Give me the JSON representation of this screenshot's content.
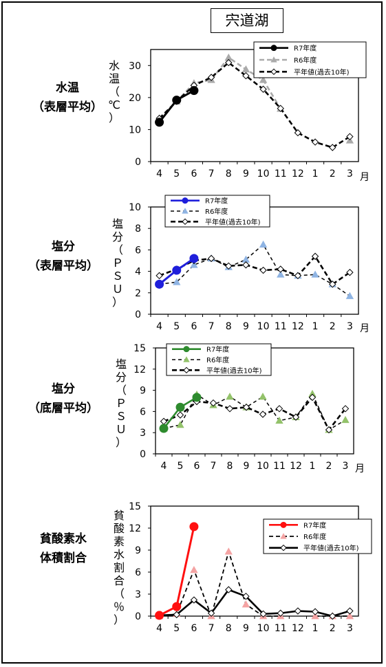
{
  "lake_title": "宍道湖",
  "panels": [
    {
      "label_lines": [
        "水温",
        "（表層平均）"
      ],
      "ylabel_chars": [
        "水",
        "温",
        "（",
        "℃",
        "）"
      ],
      "chart_data": {
        "type": "line",
        "categories": [
          "4",
          "5",
          "6",
          "7",
          "8",
          "9",
          "10",
          "11",
          "12",
          "1",
          "2",
          "3"
        ],
        "x_unit": "月",
        "ylim": [
          0,
          35
        ],
        "yticks": [
          0,
          10,
          20,
          30
        ],
        "legend_position": "top-right",
        "colors": {
          "r7": "#000000",
          "r6": "#aaaaaa",
          "avg": "#000000"
        },
        "series": [
          {
            "name": "R7年度",
            "values": [
              12.3,
              19.2,
              22.2,
              null,
              null,
              null,
              null,
              null,
              null,
              null,
              null,
              null
            ]
          },
          {
            "name": "R6年度",
            "values": [
              13.5,
              18.8,
              24.5,
              25.5,
              32.5,
              28.8,
              25.5,
              16.5,
              null,
              null,
              null,
              6.6
            ]
          },
          {
            "name": "平年値(過去10年)",
            "values": [
              13.5,
              18.8,
              23.8,
              26.3,
              30.9,
              26.8,
              22.6,
              16.6,
              9.0,
              6.1,
              4.4,
              7.8
            ]
          }
        ]
      }
    },
    {
      "label_lines": [
        "塩分",
        "（表層平均）"
      ],
      "ylabel_chars": [
        "塩",
        "分",
        "（",
        "Ｐ",
        "Ｓ",
        "Ｕ",
        "）"
      ],
      "chart_data": {
        "type": "line",
        "categories": [
          "4",
          "5",
          "6",
          "7",
          "8",
          "9",
          "10",
          "11",
          "12",
          "1",
          "2",
          "3"
        ],
        "x_unit": "月",
        "ylim": [
          0,
          10
        ],
        "yticks": [
          0,
          2,
          4,
          6,
          8,
          10
        ],
        "legend_position": "top-left",
        "colors": {
          "r7": "#1f1fdb",
          "r6": "#8fb4e3",
          "avg": "#000000"
        },
        "series": [
          {
            "name": "R7年度",
            "values": [
              2.8,
              4.1,
              5.2,
              null,
              null,
              null,
              null,
              null,
              null,
              null,
              null,
              null
            ]
          },
          {
            "name": "R6年度",
            "values": [
              2.8,
              3.0,
              4.6,
              5.2,
              4.4,
              5.1,
              6.5,
              3.7,
              3.6,
              3.7,
              2.8,
              1.7
            ]
          },
          {
            "name": "平年値(過去10年)",
            "values": [
              3.6,
              4.2,
              5.0,
              5.2,
              4.5,
              4.6,
              4.1,
              4.2,
              3.6,
              5.4,
              2.8,
              3.9
            ]
          }
        ]
      }
    },
    {
      "label_lines": [
        "塩分",
        "（底層平均）"
      ],
      "ylabel_chars": [
        "塩",
        "分",
        "（",
        "Ｐ",
        "Ｓ",
        "Ｕ",
        "）"
      ],
      "chart_data": {
        "type": "line",
        "categories": [
          "4",
          "5",
          "6",
          "7",
          "8",
          "9",
          "10",
          "11",
          "12",
          "1",
          "2",
          "3"
        ],
        "x_unit": "月",
        "ylim": [
          0,
          15
        ],
        "yticks": [
          0,
          3,
          6,
          9,
          12,
          15
        ],
        "legend_position": "top-left",
        "colors": {
          "r7": "#2e8b2e",
          "r6": "#93c26a",
          "avg": "#000000"
        },
        "series": [
          {
            "name": "R7年度",
            "values": [
              3.6,
              6.6,
              8.0,
              null,
              null,
              null,
              null,
              null,
              null,
              null,
              null,
              null
            ]
          },
          {
            "name": "R6年度",
            "values": [
              3.6,
              4.1,
              8.4,
              6.9,
              8.1,
              6.6,
              8.1,
              4.7,
              5.2,
              8.5,
              3.4,
              4.8
            ]
          },
          {
            "name": "平年値(過去10年)",
            "values": [
              4.6,
              5.5,
              7.4,
              7.2,
              6.4,
              6.6,
              5.6,
              6.4,
              5.2,
              8.0,
              3.4,
              6.4
            ]
          }
        ]
      }
    },
    {
      "label_lines": [
        "貧酸素水",
        "体積割合"
      ],
      "ylabel_chars": [
        "貧",
        "酸",
        "素",
        "水",
        "割",
        "合",
        "（",
        "％",
        "）"
      ],
      "chart_data": {
        "type": "line",
        "categories": [
          "4",
          "5",
          "6",
          "7",
          "8",
          "9",
          "10",
          "11",
          "12",
          "1",
          "2",
          "3"
        ],
        "x_unit": "",
        "ylim": [
          0,
          15
        ],
        "yticks": [
          0,
          3,
          6,
          9,
          12,
          15
        ],
        "legend_position": "top-right",
        "colors": {
          "r7": "#ff1010",
          "r6": "#f4a3a3",
          "avg": "#000000"
        },
        "series": [
          {
            "name": "R7年度",
            "values": [
              0.1,
              1.3,
              12.2,
              null,
              null,
              null,
              null,
              null,
              null,
              null,
              null,
              null
            ]
          },
          {
            "name": "R6年度",
            "values": [
              0.0,
              0.3,
              6.3,
              0.0,
              8.8,
              1.6,
              0.0,
              0.0,
              null,
              0.0,
              0.0,
              0.0
            ]
          },
          {
            "name": "平年値(過去10年)",
            "values": [
              0.1,
              0.2,
              2.2,
              0.4,
              3.6,
              2.7,
              0.3,
              0.4,
              0.7,
              0.6,
              0.0,
              0.7
            ]
          }
        ]
      }
    }
  ]
}
